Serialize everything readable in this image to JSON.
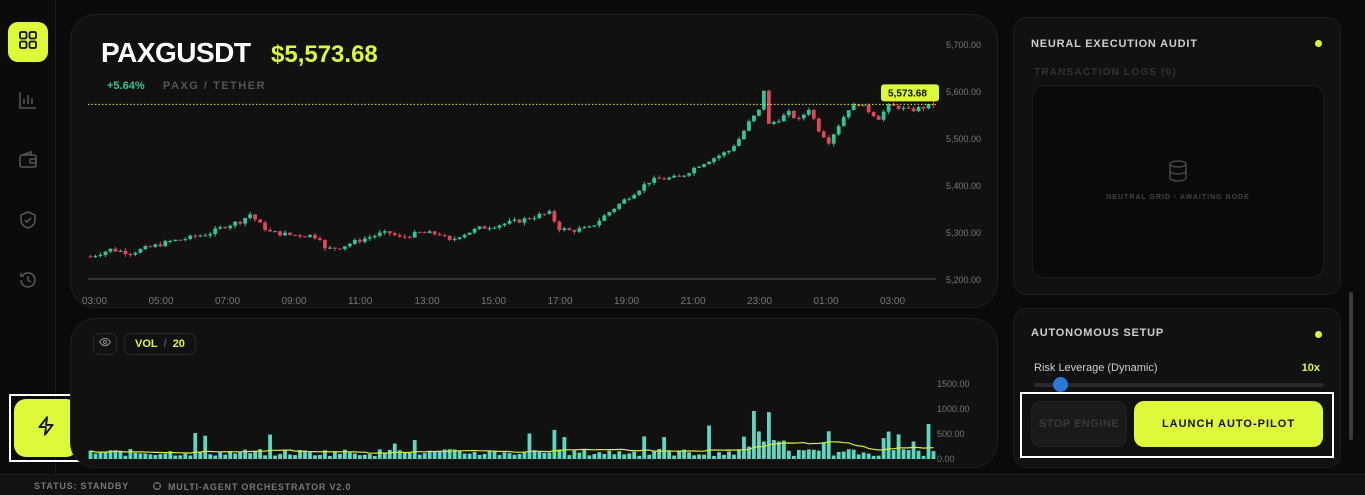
{
  "sidebar": {
    "items": [
      {
        "name": "dashboard",
        "icon": "grid-icon",
        "active": true
      },
      {
        "name": "analytics",
        "icon": "bar-chart-icon",
        "active": false
      },
      {
        "name": "wallet",
        "icon": "wallet-icon",
        "active": false
      },
      {
        "name": "security",
        "icon": "shield-check-icon",
        "active": false
      },
      {
        "name": "history",
        "icon": "history-icon",
        "active": false
      }
    ],
    "action_icon": "bolt-icon"
  },
  "chart": {
    "ticker": "PAXGUSDT",
    "price": "$5,573.68",
    "change": "+5.64%",
    "pair": "PAXG / TETHER",
    "price_tag": "5,573.68"
  },
  "volume": {
    "label": "VOL",
    "separator": "/",
    "period": "20"
  },
  "audit": {
    "title": "NEURAL EXECUTION AUDIT",
    "logs_title": "TRANSACTION LOGS (0)",
    "empty_text": "NEUTRAL GRID - AWAITING NODE"
  },
  "setup": {
    "title": "AUTONOMOUS SETUP",
    "leverage_label": "Risk Leverage (Dynamic)",
    "leverage_value": "10x",
    "leverage_fraction": 0.09,
    "stop_label": "STOP ENGINE",
    "launch_label": "LAUNCH AUTO-PILOT"
  },
  "status": {
    "left": "STATUS: STANDBY",
    "right": "MULTI-AGENT ORCHESTRATOR V2.0"
  },
  "colors": {
    "accent": "#ddf93a",
    "up": "#2fc49a",
    "down": "#e0455a",
    "volume": "#5fd6c0",
    "ma": "#d8ec3a"
  },
  "chart_data": [
    {
      "type": "candlestick",
      "y_ticks": [
        "5,700.00",
        "5,600.00",
        "5,500.00",
        "5,400.00",
        "5,300.00",
        "5,200.00"
      ],
      "y_tick_values": [
        5700,
        5600,
        5500,
        5400,
        5300,
        5200
      ],
      "ylim": [
        5200,
        5700
      ],
      "x_ticks": [
        "03:00",
        "05:00",
        "07:00",
        "09:00",
        "11:00",
        "13:00",
        "15:00",
        "17:00",
        "19:00",
        "21:00",
        "23:00",
        "01:00",
        "03:00"
      ],
      "last_price": 5573.68,
      "close_path": [
        [
          0,
          5250
        ],
        [
          4,
          5265
        ],
        [
          8,
          5258
        ],
        [
          12,
          5270
        ],
        [
          16,
          5282
        ],
        [
          20,
          5290
        ],
        [
          24,
          5300
        ],
        [
          27,
          5315
        ],
        [
          30,
          5325
        ],
        [
          32,
          5340
        ],
        [
          34,
          5318
        ],
        [
          36,
          5302
        ],
        [
          40,
          5296
        ],
        [
          44,
          5295
        ],
        [
          46,
          5290
        ],
        [
          47,
          5265
        ],
        [
          50,
          5270
        ],
        [
          54,
          5285
        ],
        [
          58,
          5298
        ],
        [
          60,
          5300
        ],
        [
          62,
          5290
        ],
        [
          66,
          5300
        ],
        [
          70,
          5298
        ],
        [
          72,
          5282
        ],
        [
          74,
          5295
        ],
        [
          78,
          5310
        ],
        [
          82,
          5318
        ],
        [
          86,
          5326
        ],
        [
          90,
          5338
        ],
        [
          92,
          5342
        ],
        [
          94,
          5310
        ],
        [
          96,
          5305
        ],
        [
          100,
          5310
        ],
        [
          104,
          5345
        ],
        [
          108,
          5378
        ],
        [
          112,
          5410
        ],
        [
          114,
          5415
        ],
        [
          118,
          5418
        ],
        [
          122,
          5445
        ],
        [
          126,
          5465
        ],
        [
          128,
          5475
        ],
        [
          130,
          5500
        ],
        [
          132,
          5535
        ],
        [
          134,
          5560
        ],
        [
          135,
          5605
        ],
        [
          136,
          5530
        ],
        [
          140,
          5555
        ],
        [
          142,
          5540
        ],
        [
          144,
          5565
        ],
        [
          146,
          5520
        ],
        [
          148,
          5495
        ],
        [
          150,
          5530
        ],
        [
          152,
          5565
        ],
        [
          154,
          5575
        ],
        [
          156,
          5560
        ],
        [
          158,
          5545
        ],
        [
          160,
          5570
        ],
        [
          162,
          5568
        ],
        [
          164,
          5560
        ],
        [
          166,
          5565
        ],
        [
          168,
          5570
        ],
        [
          169,
          5573.68
        ]
      ]
    },
    {
      "type": "bar",
      "name": "VOL",
      "ma_period": 20,
      "y_ticks": [
        "1500.00",
        "1000.00",
        "500.00",
        "0.00"
      ],
      "y_tick_values": [
        1500,
        1000,
        500,
        0
      ],
      "ylim": [
        0,
        1500
      ]
    }
  ]
}
